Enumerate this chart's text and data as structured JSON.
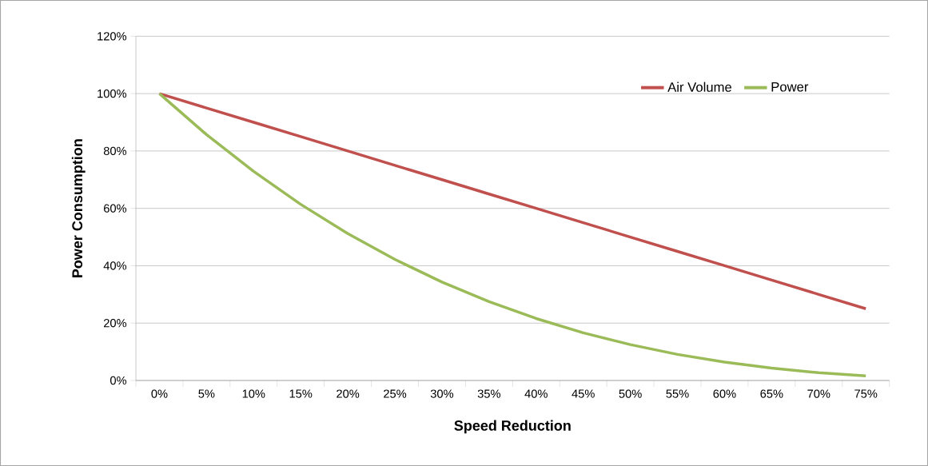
{
  "chart_data": {
    "type": "line",
    "xlabel": "Speed Reduction",
    "ylabel": "Power Consumption",
    "categories": [
      "0%",
      "5%",
      "10%",
      "15%",
      "20%",
      "25%",
      "30%",
      "35%",
      "40%",
      "45%",
      "50%",
      "55%",
      "60%",
      "65%",
      "70%",
      "75%"
    ],
    "series": [
      {
        "name": "Air Volume",
        "color": "#c0504d",
        "values": [
          100,
          95,
          90,
          85,
          80,
          75,
          70,
          65,
          60,
          55,
          50,
          45,
          40,
          35,
          30,
          25
        ]
      },
      {
        "name": "Power",
        "color": "#9bbb59",
        "values": [
          100,
          85.7,
          72.9,
          61.4,
          51.2,
          42.2,
          34.3,
          27.5,
          21.6,
          16.6,
          12.5,
          9.1,
          6.4,
          4.3,
          2.7,
          1.6
        ]
      }
    ],
    "ylim": [
      0,
      120
    ],
    "yticks": [
      {
        "value": 0,
        "label": "0%"
      },
      {
        "value": 20,
        "label": "20%"
      },
      {
        "value": 40,
        "label": "40%"
      },
      {
        "value": 60,
        "label": "60%"
      },
      {
        "value": 80,
        "label": "80%"
      },
      {
        "value": 100,
        "label": "100%"
      },
      {
        "value": 120,
        "label": "120%"
      }
    ],
    "grid": "y",
    "legend": "top right",
    "marker": "none",
    "line_style": "solid"
  }
}
